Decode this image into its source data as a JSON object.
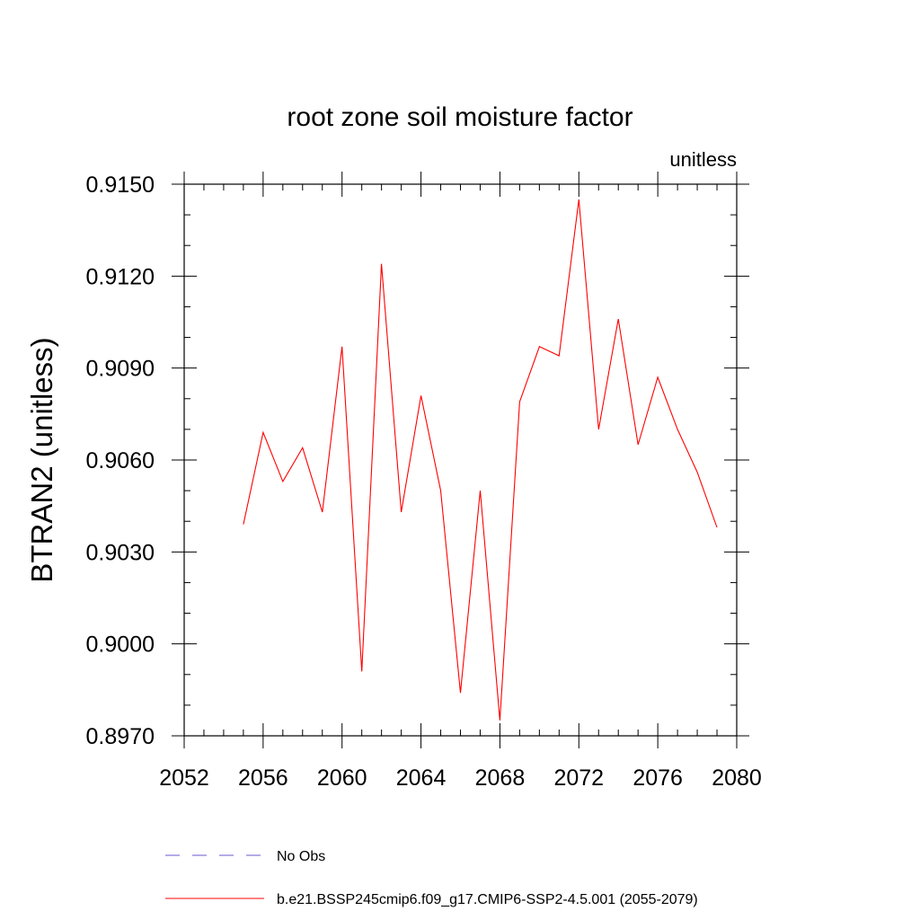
{
  "chart_data": {
    "type": "line",
    "title": "root zone soil moisture factor",
    "units_label": "unitless",
    "ylabel": "BTRAN2  (unitless)",
    "xlabel": "",
    "xlim": [
      2052,
      2080
    ],
    "ylim": [
      0.897,
      0.915
    ],
    "x_ticks": [
      "2052",
      "2056",
      "2060",
      "2064",
      "2068",
      "2072",
      "2076",
      "2080"
    ],
    "y_ticks": [
      "0.8970",
      "0.9000",
      "0.9030",
      "0.9060",
      "0.9090",
      "0.9120",
      "0.9150"
    ],
    "x_tick_values": [
      2052,
      2056,
      2060,
      2064,
      2068,
      2072,
      2076,
      2080
    ],
    "y_tick_values": [
      0.897,
      0.9,
      0.903,
      0.906,
      0.909,
      0.912,
      0.915
    ],
    "x_minor_step": 1,
    "y_minor_step": 0.001,
    "grid": false,
    "legend_position": "bottom",
    "series": [
      {
        "name": "b.e21.BSSP245cmip6.f09_g17.CMIP6-SSP2-4.5.001 (2055-2079)",
        "color": "#ff0000",
        "dash": "solid",
        "x": [
          2055,
          2056,
          2057,
          2058,
          2059,
          2060,
          2061,
          2062,
          2063,
          2064,
          2065,
          2066,
          2067,
          2068,
          2069,
          2070,
          2071,
          2072,
          2073,
          2074,
          2075,
          2076,
          2077,
          2078,
          2079
        ],
        "y": [
          0.9039,
          0.9069,
          0.9053,
          0.9064,
          0.9043,
          0.9097,
          0.8991,
          0.9124,
          0.9043,
          0.9081,
          0.905,
          0.8984,
          0.905,
          0.8975,
          0.9079,
          0.9097,
          0.9094,
          0.9145,
          0.907,
          0.9106,
          0.9065,
          0.9087,
          0.907,
          0.9056,
          0.9038
        ]
      }
    ],
    "legend": [
      {
        "label": "No Obs",
        "color": "#6a5acd",
        "dash": "dashed"
      },
      {
        "label": "b.e21.BSSP245cmip6.f09_g17.CMIP6-SSP2-4.5.001 (2055-2079)",
        "color": "#ff0000",
        "dash": "solid"
      }
    ]
  }
}
